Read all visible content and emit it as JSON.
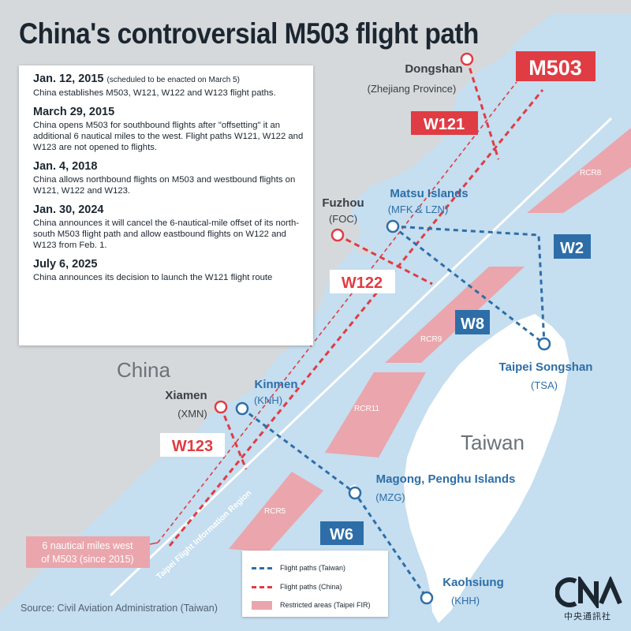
{
  "title": "China's controversial M503 flight path",
  "timeline": [
    {
      "date": "Jan. 12, 2015",
      "note": "(scheduled to be enacted on March 5)",
      "text": "China establishes M503, W121, W122 and W123 flight paths."
    },
    {
      "date": "March 29, 2015",
      "note": "",
      "text": "China opens M503 for southbound flights after \"offsetting\" it an additional 6 nautical miles to the west. Flight paths W121, W122 and W123 are not opened to flights."
    },
    {
      "date": "Jan. 4, 2018",
      "note": "",
      "text": "China allows northbound flights on M503 and westbound flights on W121, W122 and W123."
    },
    {
      "date": "Jan. 30, 2024",
      "note": "",
      "text": "China announces it will cancel the 6-nautical-mile offset of its north-south M503 flight path and allow eastbound flights on W122 and W123 from Feb. 1."
    },
    {
      "date": "July 6, 2025",
      "note": "",
      "text": "China announces its decision to launch the W121 flight route"
    }
  ],
  "map": {
    "regions": {
      "china": "China",
      "taiwan": "Taiwan"
    },
    "fir_label": "Taipei Flight Information Region",
    "offset_note_line1": "6 nautical miles west",
    "offset_note_line2": "of M503 (since 2015)",
    "airports": {
      "dongshan": {
        "name": "Dongshan",
        "code": "(Zhejiang Province)"
      },
      "fuzhou": {
        "name": "Fuzhou",
        "code": "(FOC)"
      },
      "xiamen": {
        "name": "Xiamen",
        "code": "(XMN)"
      },
      "matsu": {
        "name": "Matsu Islands",
        "code": "(MFK & LZN)"
      },
      "kinmen": {
        "name": "Kinmen",
        "code": "(KNH)"
      },
      "songshan": {
        "name": "Taipei Songshan",
        "code": "(TSA)"
      },
      "magong": {
        "name": "Magong, Penghu Islands",
        "code": "(MZG)"
      },
      "kaohsiung": {
        "name": "Kaohsiung",
        "code": "(KHH)"
      }
    },
    "routes": {
      "m503": "M503",
      "w121": "W121",
      "w122": "W122",
      "w123": "W123",
      "w2": "W2",
      "w8": "W8",
      "w6": "W6"
    },
    "restricted_areas": {
      "rcr8": "RCR8",
      "rcr9": "RCR9",
      "rcr11": "RCR11",
      "rcr5": "RCR5"
    }
  },
  "legend": {
    "taiwan_paths": "Flight paths (Taiwan)",
    "china_paths": "Flight paths (China)",
    "restricted": "Restricted areas (Taipei FIR)"
  },
  "source": "Source: Civil Aviation Administration (Taiwan)",
  "logo_text": "中央通訊社",
  "colors": {
    "sea": "#c5def0",
    "land": "#d6d9dc",
    "taiwan_island": "#ffffff",
    "china_route": "#e03c43",
    "taiwan_route": "#2d6ea8",
    "restricted_area": "#eaa6ac",
    "title_text": "#1c2630"
  }
}
